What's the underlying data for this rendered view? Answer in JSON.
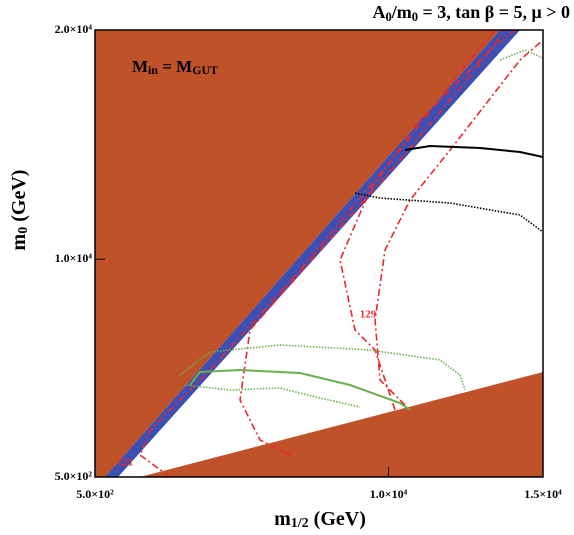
{
  "chart_data": {
    "type": "contour",
    "title": [
      "A",
      "0",
      "/m",
      "0",
      " = 3, tan β = 5, μ > 0"
    ],
    "xlabel": [
      "m",
      "1/2",
      " (GeV)"
    ],
    "ylabel": [
      "m",
      "0",
      " (GeV)"
    ],
    "annotation": [
      "M",
      "in",
      " = M",
      "GUT"
    ],
    "contour_labels": [
      "121",
      "129"
    ],
    "xlim": [
      500,
      15000
    ],
    "ylim": [
      500,
      20000
    ],
    "xticks": [
      {
        "value": 500,
        "label": "5.0×10²"
      },
      {
        "value": 10000,
        "label": "1.0×10⁴"
      },
      {
        "value": 15000,
        "label": "1.5×10⁴"
      }
    ],
    "yticks": [
      {
        "value": 500,
        "label": "5.0×10²"
      },
      {
        "value": 10000,
        "label": "1.0×10⁴"
      },
      {
        "value": 20000,
        "label": "2.0×10⁴"
      }
    ],
    "regions": [
      {
        "color": "#c0522a",
        "x": [
          500,
          13610,
          824,
          500
        ],
        "y": [
          20000,
          20000,
          500,
          500
        ]
      },
      {
        "color": "#3b4fb5",
        "x": [
          13610,
          14257,
          1245,
          824
        ],
        "y": [
          20000,
          20000,
          500,
          500
        ]
      },
      {
        "color": "#c0522a",
        "x": [
          1957,
          15000,
          15000
        ],
        "y": [
          500,
          5080,
          500
        ]
      }
    ],
    "series": [
      {
        "color": "#e8282e",
        "style": "dashdot",
        "x": [
          2928,
          1957,
          2280,
          4223,
          7136,
          10373,
          12639,
          13448
        ],
        "values": [
          500,
          1460,
          2550,
          5167,
          9529,
          14764,
          18690,
          20000
        ]
      },
      {
        "color": "#e8282e",
        "style": "dashdot",
        "x": [
          6812,
          5841,
          5194,
          5517,
          7783,
          10373,
          12801,
          13772
        ],
        "values": [
          1460,
          2114,
          3859,
          6912,
          10402,
          14328,
          18253,
          20000
        ]
      },
      {
        "color": "#e8282e",
        "style": "dashdot",
        "x": [
          10211,
          9564,
          8916,
          8431,
          9402,
          11020,
          13286,
          14095
        ],
        "values": [
          3423,
          6040,
          6912,
          9966,
          13019,
          16072,
          19126,
          20000
        ]
      },
      {
        "color": "#e8282e",
        "style": "dashdot",
        "x": [
          10535,
          9725,
          9564,
          9887,
          10697,
          11991,
          14257,
          15000
        ],
        "values": [
          3641,
          4731,
          7348,
          10402,
          12583,
          14764,
          18690,
          19562
        ]
      },
      {
        "color": "#6ab04c",
        "style": "solid",
        "x": [
          3575,
          3899,
          5194,
          7136,
          8754,
          10373,
          10697
        ],
        "values": [
          4513,
          5080,
          5167,
          5036,
          4513,
          3728,
          3423
        ]
      },
      {
        "color": "#6ab04c",
        "style": "dotted",
        "x": [
          3251,
          4223,
          6488,
          9402,
          11668,
          12315,
          12477
        ],
        "values": [
          4949,
          5953,
          6258,
          6040,
          5604,
          4949,
          4295
        ]
      },
      {
        "color": "#6ab04c",
        "style": "dotted",
        "x": [
          3413,
          4870,
          6488,
          7783,
          9078
        ],
        "values": [
          4513,
          4295,
          4382,
          3946,
          3553
        ]
      },
      {
        "color": "#6ab04c",
        "style": "dotted",
        "x": [
          13610,
          14419,
          15000
        ],
        "values": [
          18690,
          19126,
          18777
        ]
      },
      {
        "color": "#000000",
        "style": "solid",
        "x": [
          10535,
          11344,
          12962,
          14257,
          15000
        ],
        "values": [
          14764,
          14938,
          14851,
          14677,
          14458
        ]
      },
      {
        "color": "#000000",
        "style": "dotted",
        "x": [
          8916,
          9725,
          11991,
          14257,
          15000
        ],
        "values": [
          12888,
          12670,
          12452,
          11928,
          11187
        ]
      }
    ]
  }
}
